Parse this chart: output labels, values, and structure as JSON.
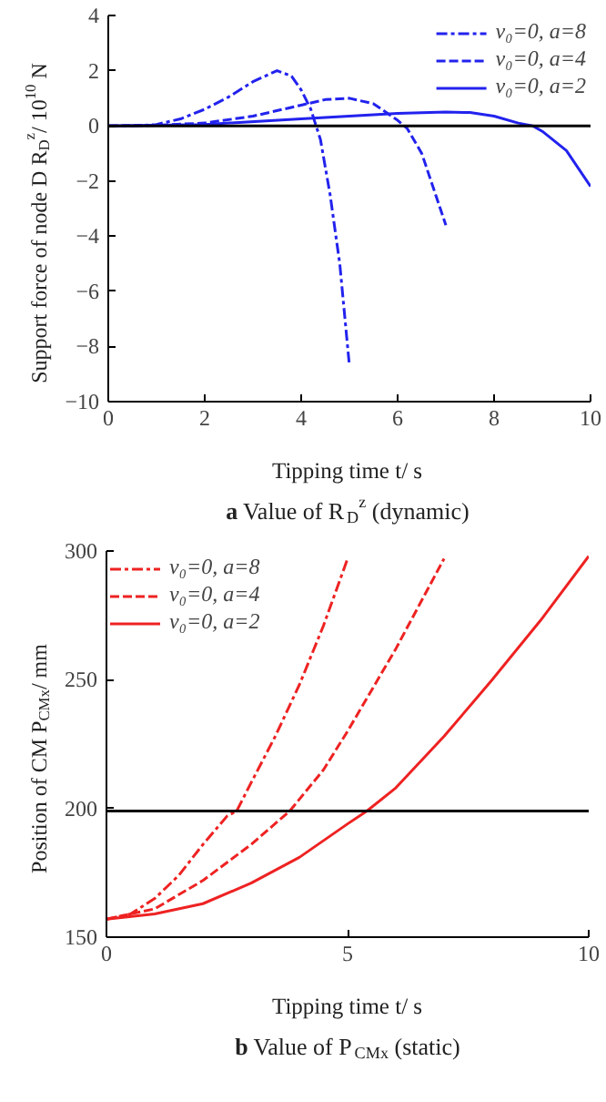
{
  "chart_data": [
    {
      "type": "line",
      "xlabel": "Tipping time t/ s",
      "ylabel": "Support force of node D R$_{D}$$^{z}$/ 10$^{10}$ N",
      "annotations": [
        "a Value of R$_{D}$$^{z}$ (dynamic)"
      ],
      "xlim": [
        0,
        10
      ],
      "ylim": [
        -10,
        4
      ],
      "xticks": [
        0,
        2,
        4,
        6,
        8,
        10
      ],
      "yticks": [
        -10,
        -8,
        -6,
        -4,
        -2,
        0,
        2,
        4
      ],
      "grid": false,
      "legend": "top right",
      "ref_lines": [
        {
          "axis": "y",
          "value": 0,
          "color": "#000000"
        }
      ],
      "series": [
        {
          "name": "v₀=0, a=8",
          "color": "#2222ee",
          "line_style": "dashdot",
          "x": [
            0,
            0.5,
            1,
            1.5,
            2,
            2.5,
            3,
            3.5,
            3.8,
            4,
            4.2,
            4.4,
            4.6,
            4.8,
            5.0
          ],
          "values": [
            0,
            0,
            0.05,
            0.25,
            0.6,
            1.05,
            1.6,
            2.0,
            1.8,
            1.3,
            0.6,
            -0.5,
            -2.5,
            -5,
            -8.7
          ]
        },
        {
          "name": "v₀=0, a=4",
          "color": "#2222ee",
          "line_style": "dashed",
          "x": [
            0,
            1,
            2,
            3,
            4,
            4.5,
            5,
            5.5,
            6,
            6.2,
            6.5,
            7
          ],
          "values": [
            0,
            0.02,
            0.1,
            0.35,
            0.75,
            0.95,
            1.0,
            0.8,
            0.2,
            -0.1,
            -1.0,
            -3.6
          ]
        },
        {
          "name": "v₀=0, a=2",
          "color": "#2222ee",
          "line_style": "solid",
          "x": [
            0,
            2,
            4,
            5,
            6,
            7,
            7.5,
            8,
            8.5,
            8.8,
            9,
            9.5,
            10
          ],
          "values": [
            0,
            0.05,
            0.25,
            0.35,
            0.45,
            0.5,
            0.48,
            0.35,
            0.1,
            0,
            -0.2,
            -0.9,
            -2.2
          ]
        }
      ]
    },
    {
      "type": "line",
      "xlabel": "Tipping time t/ s",
      "ylabel": "Position of CM P$_{CMx}$/ mm",
      "annotations": [
        "b Value of P$_{CMx}$ (static)"
      ],
      "xlim": [
        0,
        10
      ],
      "ylim": [
        150,
        300
      ],
      "xticks": [
        0,
        5,
        10
      ],
      "yticks": [
        150,
        200,
        250,
        300
      ],
      "grid": false,
      "legend": "top left",
      "ref_lines": [
        {
          "axis": "y",
          "value": 199,
          "color": "#000000"
        }
      ],
      "series": [
        {
          "name": "v₀=0, a=8",
          "color": "#ee2222",
          "line_style": "dashdot",
          "x": [
            0,
            0.5,
            1,
            1.5,
            2,
            2.5,
            2.7,
            3,
            3.5,
            4,
            4.5,
            5
          ],
          "values": [
            157,
            159,
            165,
            174,
            186,
            197,
            199,
            210,
            228,
            248,
            271,
            297
          ]
        },
        {
          "name": "v₀=0, a=4",
          "color": "#ee2222",
          "line_style": "dashed",
          "x": [
            0,
            1,
            2,
            3,
            3.8,
            4.5,
            5,
            6,
            7
          ],
          "values": [
            157,
            161,
            172,
            186,
            199,
            215,
            230,
            262,
            297
          ]
        },
        {
          "name": "v₀=0, a=2",
          "color": "#ee2222",
          "line_style": "solid",
          "x": [
            0,
            1,
            2,
            3,
            4,
            5,
            5.4,
            6,
            7,
            8,
            9,
            10
          ],
          "values": [
            157,
            159,
            163,
            171,
            181,
            194,
            199,
            208,
            228,
            250,
            273,
            298
          ]
        }
      ]
    }
  ]
}
